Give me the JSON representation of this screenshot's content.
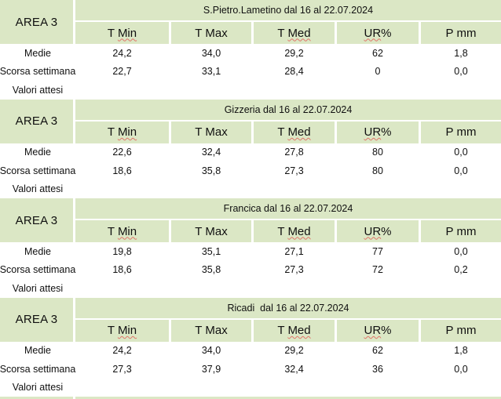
{
  "area_label": "AREA 3",
  "colors": {
    "header_green": "#dbe7c5",
    "spellcheck_red": "#e0756a",
    "grid_white": "#ffffff",
    "text": "#101010"
  },
  "columns": [
    {
      "parts": [
        {
          "text": "T "
        },
        {
          "text": "Min",
          "misspelled": true
        }
      ]
    },
    {
      "parts": [
        {
          "text": "T "
        },
        {
          "text": "Max",
          "misspelled": false
        }
      ]
    },
    {
      "parts": [
        {
          "text": "T "
        },
        {
          "text": "Med",
          "misspelled": true
        }
      ]
    },
    {
      "parts": [
        {
          "text": "UR",
          "misspelled": true
        },
        {
          "text": "%"
        }
      ]
    },
    {
      "parts": [
        {
          "text": "P "
        },
        {
          "text": "mm",
          "misspelled": false
        }
      ]
    }
  ],
  "tables": [
    {
      "title": "S.Pietro.Lametino dal 16 al 22.07.2024",
      "rows": [
        {
          "label": "Medie",
          "values": [
            "24,2",
            "34,0",
            "29,2",
            "62",
            "1,8"
          ]
        },
        {
          "label": "Scorsa settimana",
          "values": [
            "22,7",
            "33,1",
            "28,4",
            "0",
            "0,0"
          ]
        },
        {
          "label": "Valori attesi",
          "values": [
            "",
            "",
            "",
            "",
            ""
          ]
        }
      ]
    },
    {
      "title": "Gizzeria dal 16 al 22.07.2024",
      "rows": [
        {
          "label": "Medie",
          "values": [
            "22,6",
            "32,4",
            "27,8",
            "80",
            "0,0"
          ]
        },
        {
          "label": "Scorsa settimana",
          "values": [
            "18,6",
            "35,8",
            "27,3",
            "80",
            "0,0"
          ]
        },
        {
          "label": "Valori attesi",
          "values": [
            "",
            "",
            "",
            "",
            ""
          ]
        }
      ]
    },
    {
      "title": "Francica dal 16 al 22.07.2024",
      "rows": [
        {
          "label": "Medie",
          "values": [
            "19,8",
            "35,1",
            "27,1",
            "77",
            "0,0"
          ]
        },
        {
          "label": "Scorsa settimana",
          "values": [
            "18,6",
            "35,8",
            "27,3",
            "72",
            "0,2"
          ]
        },
        {
          "label": "Valori attesi",
          "values": [
            "",
            "",
            "",
            "",
            ""
          ]
        }
      ]
    },
    {
      "title": "Ricadi  dal 16 al 22.07.2024",
      "rows": [
        {
          "label": "Medie",
          "values": [
            "24,2",
            "34,0",
            "29,2",
            "62",
            "1,8"
          ]
        },
        {
          "label": "Scorsa settimana",
          "values": [
            "27,3",
            "37,9",
            "32,4",
            "36",
            "0,0"
          ]
        },
        {
          "label": "Valori attesi",
          "values": [
            "",
            "",
            "",
            "",
            ""
          ]
        }
      ]
    }
  ]
}
